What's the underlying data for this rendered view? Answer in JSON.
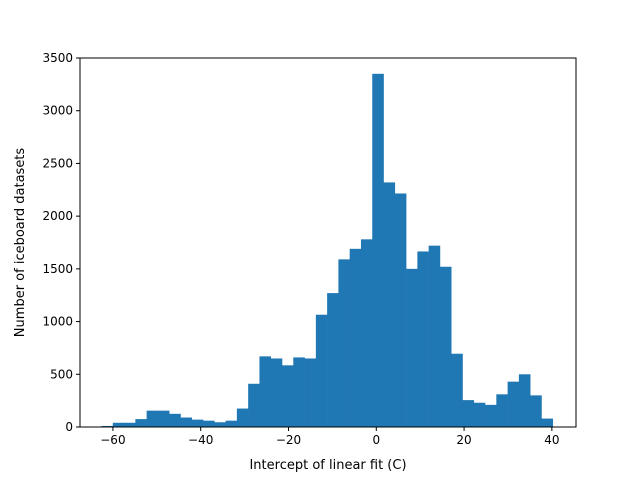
{
  "chart_data": {
    "type": "bar",
    "subtype": "histogram",
    "title": "",
    "xlabel": "Intercept of linear fit (C)",
    "ylabel": "Number of iceboard datasets",
    "xlim": [
      -67.5,
      45.5
    ],
    "ylim": [
      0,
      3500
    ],
    "xticks": [
      -60,
      -40,
      -20,
      0,
      20,
      40
    ],
    "yticks": [
      0,
      500,
      1000,
      1500,
      2000,
      2500,
      3000,
      3500
    ],
    "grid": false,
    "bar_color": "#1f77b4",
    "bin_start": -62.6,
    "bin_width": 2.57,
    "values": [
      10,
      40,
      40,
      75,
      155,
      155,
      125,
      90,
      70,
      60,
      45,
      60,
      175,
      410,
      670,
      650,
      585,
      660,
      650,
      1065,
      1270,
      1590,
      1690,
      1780,
      3350,
      2320,
      2215,
      1500,
      1665,
      1720,
      1520,
      695,
      255,
      230,
      210,
      310,
      430,
      500,
      300,
      80
    ]
  }
}
